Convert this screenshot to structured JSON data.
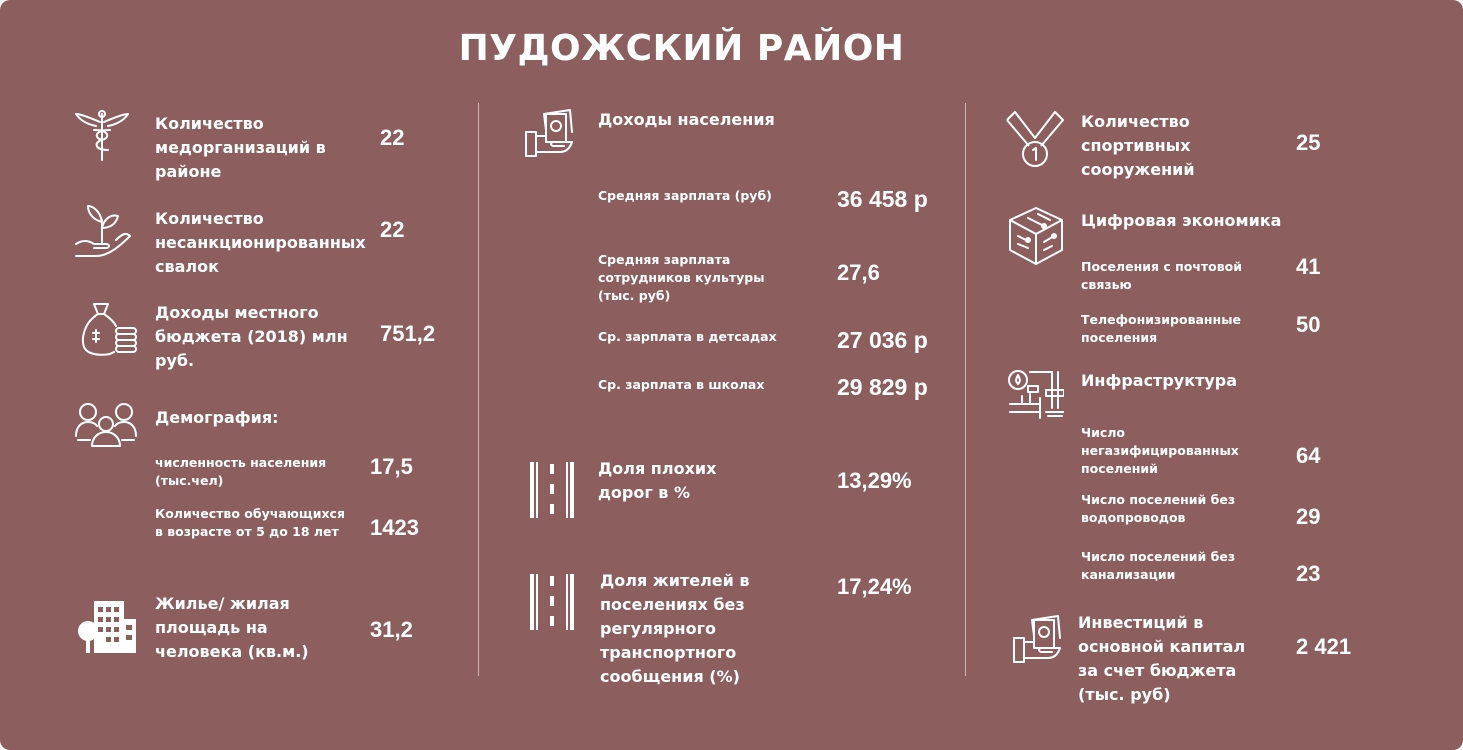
{
  "title": "ПУДОЖСКИЙ РАЙОН",
  "col1": {
    "med": {
      "label": "Количество медорганизаций в районе",
      "value": "22",
      "icon": "medical-caduceus-icon"
    },
    "dumps": {
      "label": "Количество несанкционированных свалок",
      "value": "22",
      "icon": "hand-sprout-icon"
    },
    "budget": {
      "label": "Доходы местного бюджета (2018) млн руб.",
      "value": "751,2",
      "icon": "money-bag-icon"
    },
    "demo": {
      "label": "Демография:",
      "icon": "people-group-icon",
      "population_label": "численность населения (тыс.чел)",
      "population_value": "17,5",
      "students_label": "Количество обучающихся в возрасте от 5 до 18 лет",
      "students_value": "1423"
    },
    "housing": {
      "label": "Жилье/ жилая площадь на человека (кв.м.)",
      "value": "31,2",
      "icon": "buildings-icon"
    }
  },
  "col2": {
    "income": {
      "label": "Доходы населения",
      "icon": "hand-money-icon",
      "items": [
        {
          "label": "Средняя зарплата (руб)",
          "value": "36 458 р"
        },
        {
          "label": "Средняя зарплата сотрудников культуры (тыс. руб)",
          "value": "27,6"
        },
        {
          "label": "Ср. зарплата в детсадах",
          "value": "27 036 р"
        },
        {
          "label": "Ср. зарплата в школах",
          "value": "29 829 р"
        }
      ]
    },
    "roads": {
      "label": "Доля плохих дорог в %",
      "value": "13,29%",
      "icon": "road-icon"
    },
    "transport": {
      "label": "Доля жителей в поселениях без регулярного транспортного сообщения (%)",
      "value": "17,24%",
      "icon": "road-icon"
    }
  },
  "col3": {
    "sport": {
      "label": "Количество спортивных сооружений",
      "value": "25",
      "icon": "medal-icon"
    },
    "digital": {
      "label": "Цифровая экономика",
      "icon": "chip-cube-icon",
      "items": [
        {
          "label": "Поселения с почтовой связью",
          "value": "41"
        },
        {
          "label": "Телефонизированные поселения",
          "value": "50"
        }
      ]
    },
    "infra": {
      "label": "Инфраструктура",
      "icon": "pipes-icon",
      "items": [
        {
          "label": "Число негазифицированных поселений",
          "value": "64"
        },
        {
          "label": "Число поселений без водопроводов",
          "value": "29"
        },
        {
          "label": "Число поселений без канализации",
          "value": "23"
        }
      ]
    },
    "invest": {
      "label": "Инвестиций в основной капитал за счет бюджета (тыс. руб)",
      "value": "2 421",
      "icon": "hand-money-icon"
    }
  }
}
